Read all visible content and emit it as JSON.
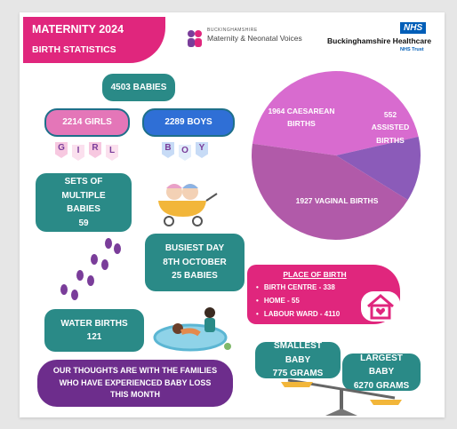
{
  "header": {
    "title": "MATERNITY 2024",
    "subtitle": "BIRTH STATISTICS"
  },
  "logos": {
    "mnv_top": "BUCKINGHAMSHIRE",
    "mnv_name": "Maternity & Neonatal Voices",
    "nhs": "NHS",
    "trust_name": "Buckinghamshire Healthcare",
    "trust_suffix": "NHS Trust"
  },
  "stats": {
    "babies": "4503 BABIES",
    "girls": "2214 GIRLS",
    "girl_banner": [
      "G",
      "I",
      "R",
      "L"
    ],
    "boys": "2289 BOYS",
    "boy_banner": [
      "B",
      "O",
      "Y"
    ],
    "multiples": {
      "label": "SETS OF MULTIPLE BABIES",
      "value": "59"
    },
    "busiest_day": {
      "label": "BUSIEST DAY",
      "date": "8TH OCTOBER",
      "value": "25 BABIES"
    },
    "water_births": {
      "label": "WATER BIRTHS",
      "value": "121"
    },
    "smallest_baby": {
      "label": "SMALLEST BABY",
      "value": "775 GRAMS"
    },
    "largest_baby": {
      "label": "LARGEST BABY",
      "value": "6270 GRAMS"
    }
  },
  "place_of_birth": {
    "title": "PLACE OF BIRTH",
    "items": [
      "BIRTH CENTRE - 338",
      "HOME - 55",
      "LABOUR WARD - 4110"
    ]
  },
  "message": "OUR THOUGHTS ARE WITH THE FAMILIES WHO HAVE EXPERIENCED BABY LOSS THIS MONTH",
  "birth_types": {
    "slices": [
      {
        "label": "1964 CAESAREAN BIRTHS",
        "value": 1964,
        "color": "#d86bcf"
      },
      {
        "label": "552 ASSISTED BIRTHS",
        "value": 552,
        "color": "#8b5bb9"
      },
      {
        "label": "1927 VAGINAL BIRTHS",
        "value": 1927,
        "color": "#b15aa9"
      }
    ]
  }
}
